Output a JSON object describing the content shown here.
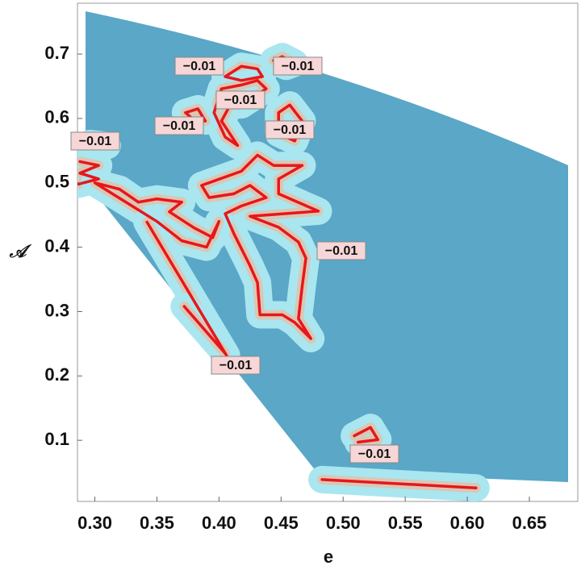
{
  "chart_data": {
    "type": "contour",
    "xlabel": "e",
    "ylabel": "𝒜",
    "xlim": [
      0.286,
      0.689
    ],
    "ylim": [
      0.005,
      0.779
    ],
    "xticks": [
      {
        "value": 0.3,
        "label": "0.30"
      },
      0.35,
      {
        "value": 0.4,
        "label": "0.40"
      },
      0.45,
      {
        "value": 0.5,
        "label": "0.50"
      },
      0.55,
      {
        "value": 0.6,
        "label": "0.60"
      },
      0.65
    ],
    "yticks": [
      0.1,
      0.2,
      0.3,
      0.4,
      0.5,
      0.6,
      0.7
    ],
    "contour_level": {
      "value": -0.01,
      "label": "−0.01"
    },
    "color": "#e8161b",
    "contours": [
      {
        "x": [
          0.405,
          0.418,
          0.431,
          0.435,
          0.418,
          0.405
        ],
        "y": [
          0.665,
          0.681,
          0.677,
          0.665,
          0.659,
          0.665
        ]
      },
      {
        "x": [
          0.444,
          0.451,
          0.461,
          0.454,
          0.444
        ],
        "y": [
          0.69,
          0.696,
          0.686,
          0.681,
          0.69
        ]
      },
      {
        "x": [
          0.402,
          0.418,
          0.431,
          0.438,
          0.418,
          0.409,
          0.402,
          0.415,
          0.405,
          0.396,
          0.402
        ],
        "y": [
          0.646,
          0.652,
          0.659,
          0.646,
          0.621,
          0.621,
          0.596,
          0.558,
          0.571,
          0.609,
          0.646
        ]
      },
      {
        "x": [
          0.448,
          0.457,
          0.467,
          0.461,
          0.448,
          0.448
        ],
        "y": [
          0.609,
          0.621,
          0.596,
          0.565,
          0.577,
          0.609
        ]
      },
      {
        "x": [
          0.373,
          0.383,
          0.389,
          0.379,
          0.373
        ],
        "y": [
          0.609,
          0.615,
          0.596,
          0.599,
          0.609
        ]
      },
      {
        "x": [
          0.296,
          0.31
        ],
        "y": [
          0.561,
          0.558
        ]
      },
      {
        "x": [
          0.288,
          0.303,
          0.288,
          0.303,
          0.287
        ],
        "y": [
          0.533,
          0.527,
          0.515,
          0.506,
          0.498
        ]
      },
      {
        "x": [
          0.386,
          0.418,
          0.431,
          0.444,
          0.467,
          0.448,
          0.448,
          0.48,
          0.425,
          0.448,
          0.464,
          0.47,
          0.467,
          0.464,
          0.474,
          0.461,
          0.451,
          0.433,
          0.431,
          0.425,
          0.412,
          0.405,
          0.418,
          0.438,
          0.425,
          0.412,
          0.392,
          0.386
        ],
        "y": [
          0.496,
          0.518,
          0.543,
          0.527,
          0.527,
          0.506,
          0.483,
          0.456,
          0.448,
          0.431,
          0.408,
          0.383,
          0.339,
          0.289,
          0.258,
          0.283,
          0.295,
          0.295,
          0.345,
          0.371,
          0.421,
          0.452,
          0.464,
          0.477,
          0.496,
          0.483,
          0.477,
          0.496
        ]
      },
      {
        "x": [
          0.3,
          0.32,
          0.335,
          0.35,
          0.37,
          0.36,
          0.38,
          0.395,
          0.4,
          0.39,
          0.37,
          0.35,
          0.3
        ],
        "y": [
          0.5,
          0.49,
          0.47,
          0.475,
          0.47,
          0.455,
          0.43,
          0.415,
          0.44,
          0.4,
          0.41,
          0.44,
          0.5
        ]
      },
      {
        "x": [
          0.342,
          0.406
        ],
        "y": [
          0.439,
          0.232
        ]
      },
      {
        "x": [
          0.372,
          0.405
        ],
        "y": [
          0.308,
          0.235
        ]
      },
      {
        "x": [
          0.509,
          0.522,
          0.528,
          0.512
        ],
        "y": [
          0.107,
          0.12,
          0.101,
          0.097
        ]
      },
      {
        "x": [
          0.483,
          0.607
        ],
        "y": [
          0.039,
          0.026
        ]
      }
    ]
  }
}
